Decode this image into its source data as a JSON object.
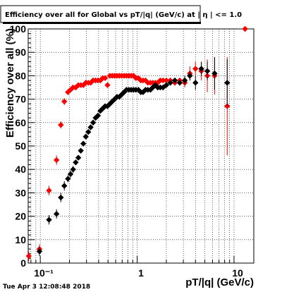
{
  "chart_data": {
    "type": "scatter",
    "title": "Efficiency over all for Global vs pT/|q| (GeV/c) at | η | <= 1.0",
    "xlabel": "pT/|q| (GeV/c)",
    "ylabel": "Efficiency over all (%)",
    "xscale": "log",
    "xlim": [
      0.075,
      16
    ],
    "ylim": [
      0,
      100
    ],
    "grid": true,
    "x_tick_labels": [
      "10⁻¹",
      "1",
      "10"
    ],
    "y_tick_labels": [
      "0",
      "10",
      "20",
      "30",
      "40",
      "50",
      "60",
      "70",
      "80",
      "90",
      "100"
    ],
    "timestamp": "Tue Apr  3 12:08:48 2018",
    "series": [
      {
        "color": "#ff0000",
        "x": [
          0.076,
          0.098,
          0.123,
          0.147,
          0.163,
          0.177,
          0.193,
          0.205,
          0.218,
          0.232,
          0.247,
          0.262,
          0.278,
          0.295,
          0.313,
          0.331,
          0.351,
          0.372,
          0.394,
          0.417,
          0.441,
          0.467,
          0.494,
          0.523,
          0.553,
          0.585,
          0.619,
          0.655,
          0.693,
          0.733,
          0.775,
          0.82,
          0.867,
          0.917,
          0.97,
          1.03,
          1.09,
          1.15,
          1.22,
          1.29,
          1.37,
          1.45,
          1.54,
          1.63,
          1.73,
          1.85,
          2.0,
          2.2,
          2.45,
          2.75,
          3.1,
          3.5,
          4.0,
          4.6,
          5.3,
          6.3,
          8.5,
          13.0
        ],
        "y": [
          3.0,
          6.0,
          31.0,
          44.0,
          59.0,
          69.0,
          73.0,
          74.0,
          75.0,
          75.0,
          76.0,
          76.0,
          76.0,
          77.0,
          77.0,
          77.0,
          78.0,
          78.0,
          78.0,
          78.0,
          79.0,
          79.0,
          76.0,
          80.0,
          80.0,
          80.0,
          80.0,
          80.0,
          80.0,
          80.0,
          80.0,
          80.0,
          80.0,
          80.0,
          79.0,
          79.0,
          78.0,
          78.0,
          78.0,
          77.0,
          77.0,
          77.0,
          77.0,
          77.0,
          78.0,
          78.0,
          78.0,
          78.0,
          77.0,
          78.0,
          77.0,
          81.0,
          83.0,
          82.0,
          80.0,
          80.0,
          67.0,
          100.0
        ],
        "yerr": [
          2,
          2,
          2,
          2,
          1.5,
          1.5,
          1,
          1,
          1,
          1,
          1,
          1,
          1,
          1,
          1,
          1,
          1,
          1,
          1,
          1,
          1,
          1,
          1,
          1,
          1,
          1,
          1,
          1,
          1,
          1,
          1,
          1,
          1,
          1,
          1,
          1,
          1,
          1,
          1,
          1,
          1,
          1,
          1,
          1,
          1,
          1,
          1,
          1,
          1,
          1,
          2,
          3,
          3,
          4,
          7,
          8,
          21,
          0
        ]
      },
      {
        "color": "#000000",
        "x": [
          0.098,
          0.123,
          0.147,
          0.163,
          0.177,
          0.193,
          0.205,
          0.218,
          0.232,
          0.247,
          0.262,
          0.278,
          0.295,
          0.313,
          0.331,
          0.351,
          0.372,
          0.394,
          0.417,
          0.441,
          0.467,
          0.494,
          0.523,
          0.553,
          0.585,
          0.619,
          0.655,
          0.693,
          0.733,
          0.775,
          0.82,
          0.867,
          0.917,
          0.97,
          1.03,
          1.09,
          1.15,
          1.22,
          1.29,
          1.37,
          1.45,
          1.54,
          1.63,
          1.73,
          1.85,
          2.0,
          2.2,
          2.45,
          2.75,
          3.1,
          3.5,
          4.0,
          4.6,
          5.3,
          6.3,
          8.5
        ],
        "y": [
          5.0,
          18.5,
          21.0,
          28.0,
          33.0,
          36.0,
          38.0,
          40.0,
          43.0,
          45.0,
          48.0,
          51.0,
          54.0,
          56.0,
          58.0,
          60.0,
          62.0,
          63.0,
          65.0,
          66.0,
          67.0,
          67.0,
          68.0,
          69.0,
          70.0,
          71.0,
          71.0,
          72.0,
          73.0,
          74.0,
          74.0,
          74.0,
          74.0,
          74.0,
          74.0,
          73.0,
          73.0,
          74.0,
          74.0,
          74.0,
          75.0,
          76.0,
          75.0,
          75.0,
          75.0,
          76.0,
          77.0,
          78.0,
          77.0,
          78.0,
          80.0,
          77.0,
          83.0,
          82.0,
          81.0,
          77.0
        ],
        "yerr": [
          2,
          2,
          2,
          2,
          2,
          1.5,
          1.5,
          1.5,
          1,
          1,
          1,
          1,
          1,
          1,
          1,
          1,
          1,
          1,
          1,
          1,
          1,
          1,
          1,
          1,
          1,
          1,
          1,
          1,
          1,
          1,
          1,
          1,
          1,
          1,
          1,
          1,
          1,
          1,
          1,
          1,
          1,
          1,
          1,
          1,
          1,
          1,
          1,
          1,
          1,
          2,
          2,
          3,
          3,
          4,
          7,
          10
        ]
      }
    ]
  }
}
